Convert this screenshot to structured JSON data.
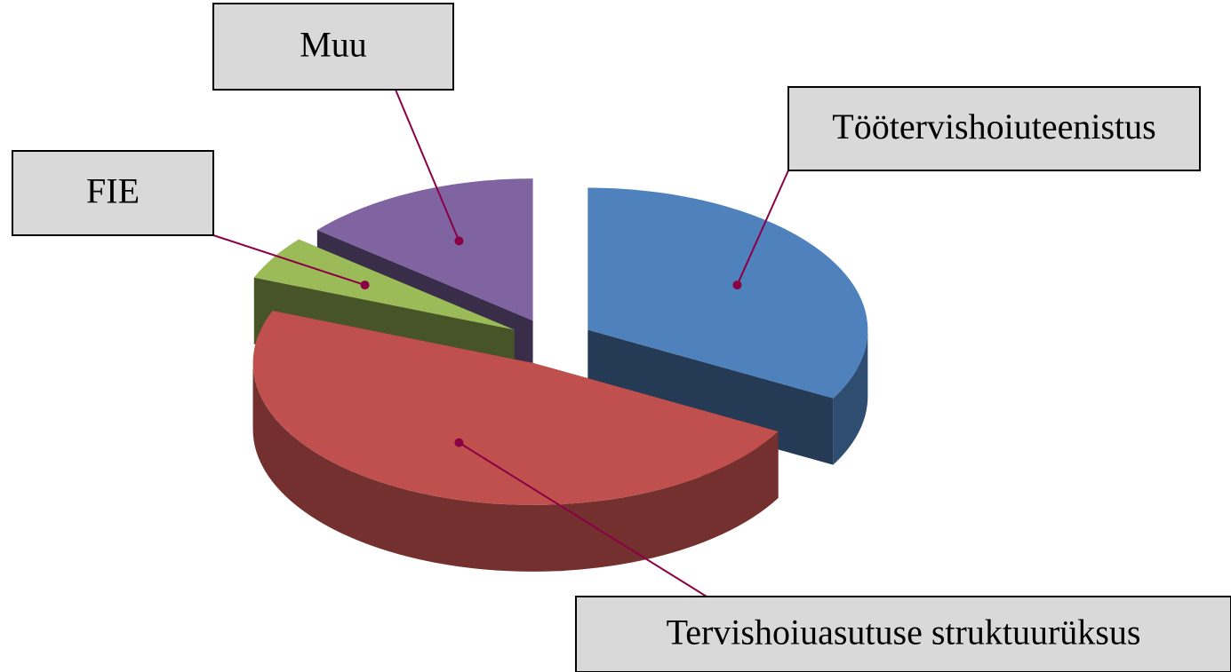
{
  "chart_data": {
    "type": "pie",
    "categories": [
      "Töötervishoiuteenistus",
      "Tervishoiuasutuse struktuurüksus",
      "FIE",
      "Muu"
    ],
    "values": [
      33,
      48,
      5,
      14
    ],
    "colors": [
      "#4f81bd",
      "#c0504d",
      "#9bbb59",
      "#8064a2"
    ]
  }
}
